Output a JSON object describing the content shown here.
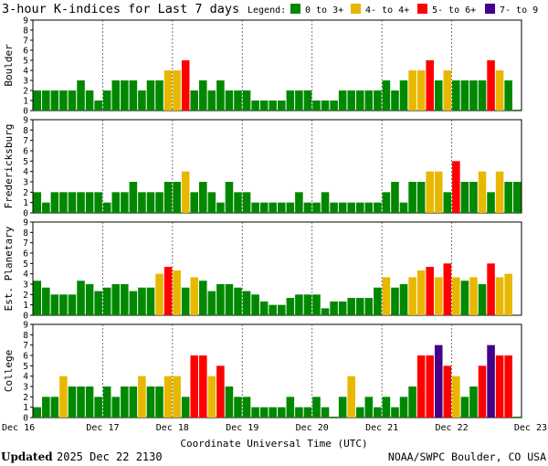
{
  "title": "3-hour K-indices for Last 7 days",
  "legend": {
    "label": "Legend:",
    "items": [
      {
        "label": "0 to 3+",
        "color": "#008800"
      },
      {
        "label": "4- to 4+",
        "color": "#e8b800"
      },
      {
        "label": "5- to 6+",
        "color": "#ff0000"
      },
      {
        "label": "7- to 9",
        "color": "#440088"
      }
    ]
  },
  "footer": {
    "updated_label": "Updated",
    "updated_time": "2025 Dec 22 2130",
    "credit": "NOAA/SWPC Boulder, CO USA"
  },
  "chart_data": [
    {
      "type": "bar",
      "ylabel": "Boulder",
      "yticks": [
        "0",
        "1",
        "2",
        "3",
        "4",
        "5",
        "6",
        "7",
        "8",
        "9"
      ],
      "ylim": [
        0,
        9
      ],
      "xlabel": "Coordinate Universal Time (UTC)",
      "x_tick_labels": [
        "Dec 16",
        "Dec 17",
        "Dec 18",
        "Dec 19",
        "Dec 20",
        "Dec 21",
        "Dec 22",
        "Dec 23"
      ],
      "values": [
        2,
        2,
        2,
        2,
        2,
        3,
        2,
        1,
        2,
        3,
        3,
        3,
        2,
        3,
        3,
        4,
        4,
        5,
        2,
        3,
        2,
        3,
        2,
        2,
        2,
        1,
        1,
        1,
        1,
        2,
        2,
        2,
        1,
        1,
        1,
        2,
        2,
        2,
        2,
        2,
        3,
        2,
        3,
        4,
        4,
        5,
        3,
        4,
        3,
        3,
        3,
        3,
        5,
        4,
        3,
        0
      ]
    },
    {
      "type": "bar",
      "ylabel": "Fredericksburg",
      "yticks": [
        "0",
        "1",
        "2",
        "3",
        "4",
        "5",
        "6",
        "7",
        "8",
        "9"
      ],
      "ylim": [
        0,
        9
      ],
      "values": [
        2,
        1,
        2,
        2,
        2,
        2,
        2,
        2,
        1,
        2,
        2,
        3,
        2,
        2,
        2,
        3,
        3,
        4,
        2,
        3,
        2,
        1,
        3,
        2,
        2,
        1,
        1,
        1,
        1,
        1,
        2,
        1,
        1,
        2,
        1,
        1,
        1,
        1,
        1,
        1,
        2,
        3,
        1,
        3,
        3,
        4,
        4,
        2,
        5,
        3,
        3,
        4,
        2,
        4,
        3,
        3,
        0
      ]
    },
    {
      "type": "bar",
      "ylabel": "Est. Planetary",
      "yticks": [
        "0",
        "1",
        "2",
        "3",
        "4",
        "5",
        "6",
        "7",
        "8",
        "9"
      ],
      "ylim": [
        0,
        9
      ],
      "values": [
        3.33,
        2.67,
        2,
        2,
        2,
        3.33,
        3,
        2.33,
        2.67,
        3,
        3,
        2.33,
        2.67,
        2.67,
        4,
        4.67,
        4.33,
        2.67,
        3.67,
        3.33,
        2.33,
        3,
        3,
        2.67,
        2.33,
        2,
        1.33,
        1,
        1,
        1.67,
        2,
        2,
        2,
        0.67,
        1.33,
        1.33,
        1.67,
        1.67,
        1.67,
        2.67,
        3.67,
        2.67,
        3,
        3.67,
        4.33,
        4.67,
        3.67,
        5,
        3.67,
        3.33,
        3.67,
        3,
        5,
        3.67,
        4
      ]
    },
    {
      "type": "bar",
      "ylabel": "College",
      "yticks": [
        "0",
        "1",
        "2",
        "3",
        "4",
        "5",
        "6",
        "7",
        "8",
        "9"
      ],
      "ylim": [
        0,
        9
      ],
      "values": [
        1,
        2,
        2,
        4,
        3,
        3,
        3,
        2,
        3,
        2,
        3,
        3,
        4,
        3,
        3,
        4,
        4,
        2,
        6,
        6,
        4,
        5,
        3,
        2,
        2,
        1,
        1,
        1,
        1,
        2,
        1,
        1,
        2,
        1,
        0,
        2,
        4,
        1,
        2,
        1,
        2,
        1,
        2,
        3,
        6,
        6,
        7,
        5,
        4,
        2,
        3,
        5,
        7,
        6,
        6,
        0
      ]
    }
  ]
}
